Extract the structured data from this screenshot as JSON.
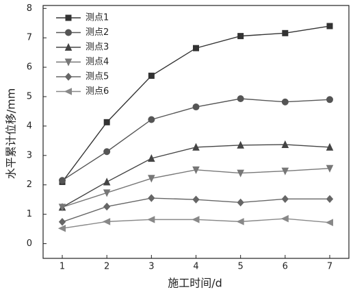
{
  "chart_data": {
    "type": "line",
    "x_label": "施工时间/d",
    "y_label": "水平累计位移/mm",
    "x": [
      1,
      2,
      3,
      4,
      5,
      6,
      7
    ],
    "xlim": [
      0.57,
      7.43
    ],
    "xticks": [
      1,
      2,
      3,
      4,
      5,
      6,
      7
    ],
    "ylim": [
      -0.5,
      8.1
    ],
    "yticks": [
      0,
      1,
      2,
      3,
      4,
      5,
      6,
      7,
      8
    ],
    "legend": "upper-left",
    "series": [
      {
        "name": "测点1",
        "color": "#333333",
        "marker": "square",
        "values": [
          2.1,
          4.13,
          5.71,
          6.65,
          7.06,
          7.16,
          7.4
        ]
      },
      {
        "name": "测点2",
        "color": "#555555",
        "marker": "circle",
        "values": [
          2.15,
          3.13,
          4.22,
          4.65,
          4.93,
          4.82,
          4.9
        ]
      },
      {
        "name": "测点3",
        "color": "#444444",
        "marker": "triangle-up",
        "values": [
          1.24,
          2.1,
          2.9,
          3.28,
          3.35,
          3.37,
          3.28
        ]
      },
      {
        "name": "测点4",
        "color": "#777777",
        "marker": "triangle-down",
        "values": [
          1.24,
          1.73,
          2.22,
          2.51,
          2.4,
          2.47,
          2.56
        ]
      },
      {
        "name": "测点5",
        "color": "#666666",
        "marker": "diamond",
        "values": [
          0.74,
          1.26,
          1.55,
          1.5,
          1.4,
          1.52,
          1.52
        ]
      },
      {
        "name": "测点6",
        "color": "#888888",
        "marker": "triangle-left",
        "values": [
          0.52,
          0.75,
          0.82,
          0.82,
          0.75,
          0.85,
          0.72
        ]
      }
    ]
  }
}
